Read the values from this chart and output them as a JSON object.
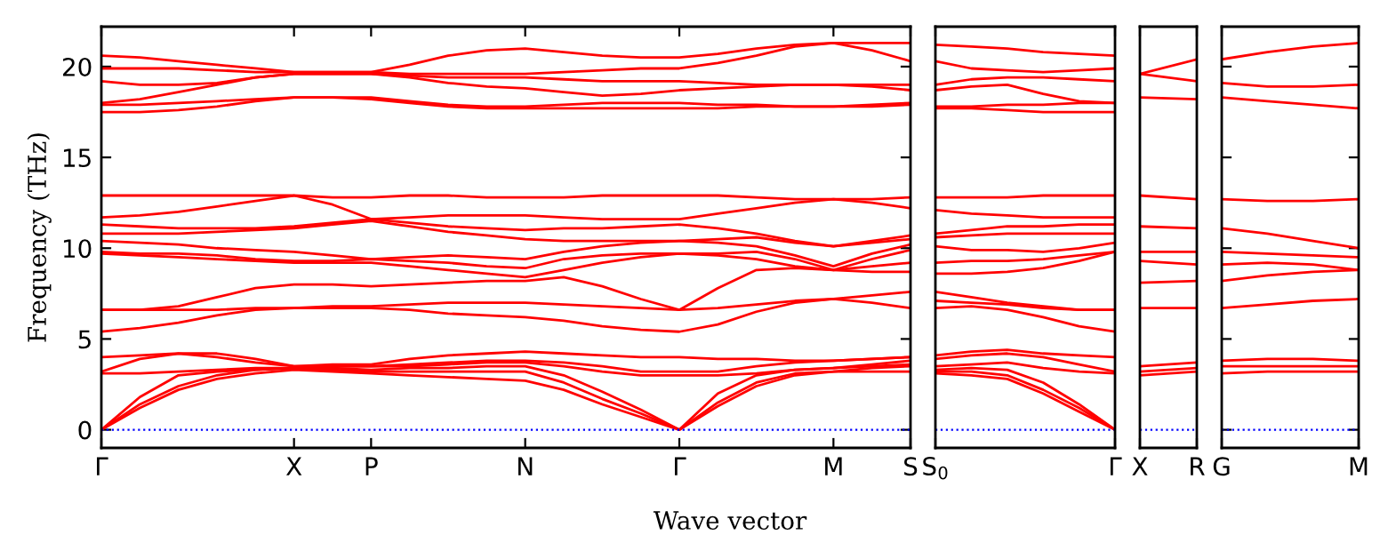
{
  "chart_data": [
    {
      "type": "line",
      "ylabel": "Frequency (THz)",
      "xlabel": "Wave vector",
      "ylim": [
        -1,
        22.2
      ],
      "yticks": [
        0,
        5,
        10,
        15,
        20
      ],
      "categories": [
        "Γ",
        null,
        null,
        null,
        null,
        "X",
        null,
        "P",
        null,
        null,
        null,
        "N",
        null,
        null,
        null,
        "Γ",
        null,
        null,
        null,
        "M",
        null,
        "S"
      ],
      "ref_lines": [
        {
          "axis": "y",
          "value": 0,
          "color": "#0000ff",
          "line_style": "dotted"
        }
      ],
      "series": [
        {
          "color": "#ff0000",
          "values": [
            0,
            1.2,
            2.2,
            2.8,
            3.1,
            3.3,
            3.2,
            3.1,
            3.0,
            2.9,
            2.8,
            2.7,
            2.2,
            1.4,
            0.7,
            0,
            1.3,
            2.4,
            3.0,
            3.2,
            3.2,
            3.2
          ]
        },
        {
          "color": "#ff0000",
          "values": [
            0,
            1.4,
            2.4,
            3.0,
            3.3,
            3.4,
            3.3,
            3.2,
            3.2,
            3.2,
            3.2,
            3.2,
            2.6,
            1.7,
            0.9,
            0,
            1.5,
            2.6,
            3.1,
            3.2,
            3.4,
            3.5
          ]
        },
        {
          "color": "#ff0000",
          "values": [
            0,
            1.8,
            3.0,
            3.2,
            3.3,
            3.4,
            3.4,
            3.3,
            3.4,
            3.4,
            3.5,
            3.5,
            3.0,
            2.1,
            1.1,
            0,
            2.0,
            3.0,
            3.3,
            3.4,
            3.5,
            3.6
          ]
        },
        {
          "color": "#ff0000",
          "values": [
            3.1,
            3.1,
            3.2,
            3.3,
            3.4,
            3.4,
            3.5,
            3.5,
            3.5,
            3.6,
            3.7,
            3.7,
            3.5,
            3.2,
            3.0,
            3.0,
            3.0,
            3.1,
            3.3,
            3.4,
            3.6,
            3.8
          ]
        },
        {
          "color": "#ff0000",
          "values": [
            3.2,
            3.9,
            4.2,
            4.0,
            3.7,
            3.5,
            3.5,
            3.5,
            3.6,
            3.7,
            3.8,
            3.8,
            3.7,
            3.5,
            3.2,
            3.2,
            3.2,
            3.5,
            3.7,
            3.8,
            3.9,
            4.0
          ]
        },
        {
          "color": "#ff0000",
          "values": [
            4.0,
            4.1,
            4.2,
            4.2,
            3.9,
            3.5,
            3.6,
            3.6,
            3.9,
            4.1,
            4.2,
            4.3,
            4.2,
            4.1,
            4.0,
            4.0,
            3.9,
            3.9,
            3.8,
            3.8,
            3.9,
            4.0
          ]
        },
        {
          "color": "#ff0000",
          "values": [
            5.4,
            5.6,
            5.9,
            6.3,
            6.6,
            6.7,
            6.7,
            6.7,
            6.6,
            6.4,
            6.3,
            6.2,
            6.0,
            5.7,
            5.5,
            5.4,
            5.8,
            6.5,
            7.0,
            7.2,
            7.0,
            6.7
          ]
        },
        {
          "color": "#ff0000",
          "values": [
            6.6,
            6.6,
            6.6,
            6.6,
            6.7,
            6.7,
            6.8,
            6.8,
            6.9,
            7.0,
            7.0,
            7.0,
            6.9,
            6.8,
            6.7,
            6.6,
            6.7,
            6.9,
            7.1,
            7.2,
            7.4,
            7.6
          ]
        },
        {
          "color": "#ff0000",
          "values": [
            6.6,
            6.6,
            6.8,
            7.3,
            7.8,
            8.0,
            8.0,
            7.9,
            8.0,
            8.1,
            8.2,
            8.2,
            8.4,
            7.9,
            7.2,
            6.6,
            7.8,
            8.8,
            8.9,
            8.8,
            8.7,
            8.7
          ]
        },
        {
          "color": "#ff0000",
          "values": [
            9.7,
            9.6,
            9.5,
            9.4,
            9.3,
            9.2,
            9.2,
            9.2,
            9.0,
            8.8,
            8.6,
            8.4,
            8.8,
            9.2,
            9.5,
            9.7,
            9.6,
            9.4,
            9.0,
            8.8,
            9.0,
            9.2
          ]
        },
        {
          "color": "#ff0000",
          "values": [
            9.8,
            9.7,
            9.7,
            9.6,
            9.4,
            9.3,
            9.3,
            9.4,
            9.3,
            9.2,
            9.0,
            8.9,
            9.4,
            9.6,
            9.7,
            9.7,
            9.7,
            9.8,
            9.4,
            8.8,
            9.4,
            9.9
          ]
        },
        {
          "color": "#ff0000",
          "values": [
            10.4,
            10.3,
            10.2,
            10.0,
            9.9,
            9.8,
            9.6,
            9.4,
            9.5,
            9.6,
            9.5,
            9.4,
            9.8,
            10.1,
            10.3,
            10.4,
            10.3,
            10.1,
            9.6,
            9.0,
            9.7,
            10.2
          ]
        },
        {
          "color": "#ff0000",
          "values": [
            10.8,
            10.8,
            10.8,
            10.9,
            11.0,
            11.1,
            11.3,
            11.5,
            11.2,
            10.9,
            10.7,
            10.5,
            10.4,
            10.4,
            10.4,
            10.4,
            10.5,
            10.6,
            10.3,
            10.1,
            10.3,
            10.5
          ]
        },
        {
          "color": "#ff0000",
          "values": [
            11.3,
            11.2,
            11.1,
            11.1,
            11.1,
            11.2,
            11.4,
            11.6,
            11.4,
            11.2,
            11.1,
            11.0,
            11.1,
            11.1,
            11.2,
            11.3,
            11.1,
            10.8,
            10.4,
            10.1,
            10.4,
            10.7
          ]
        },
        {
          "color": "#ff0000",
          "values": [
            11.7,
            11.8,
            12.0,
            12.3,
            12.6,
            12.9,
            12.4,
            11.6,
            11.7,
            11.8,
            11.8,
            11.8,
            11.7,
            11.6,
            11.6,
            11.6,
            11.9,
            12.2,
            12.5,
            12.7,
            12.5,
            12.2
          ]
        },
        {
          "color": "#ff0000",
          "values": [
            12.9,
            12.9,
            12.9,
            12.9,
            12.9,
            12.9,
            12.8,
            12.8,
            12.9,
            12.9,
            12.8,
            12.8,
            12.8,
            12.9,
            12.9,
            12.9,
            12.9,
            12.8,
            12.7,
            12.7,
            12.7,
            12.8
          ]
        },
        {
          "color": "#ff0000",
          "values": [
            17.5,
            17.5,
            17.6,
            17.8,
            18.1,
            18.3,
            18.3,
            18.2,
            18.0,
            17.8,
            17.7,
            17.7,
            17.7,
            17.7,
            17.7,
            17.7,
            17.7,
            17.8,
            17.8,
            17.8,
            17.8,
            17.9
          ]
        },
        {
          "color": "#ff0000",
          "values": [
            17.9,
            17.9,
            18.0,
            18.1,
            18.2,
            18.3,
            18.3,
            18.3,
            18.1,
            17.9,
            17.8,
            17.8,
            17.9,
            18.0,
            18.0,
            18.0,
            17.9,
            17.9,
            17.8,
            17.8,
            17.9,
            18.0
          ]
        },
        {
          "color": "#ff0000",
          "values": [
            18.0,
            18.2,
            18.6,
            19.0,
            19.4,
            19.6,
            19.6,
            19.6,
            19.4,
            19.1,
            18.9,
            18.8,
            18.6,
            18.4,
            18.5,
            18.7,
            18.8,
            18.9,
            19.0,
            19.0,
            18.9,
            18.7
          ]
        },
        {
          "color": "#ff0000",
          "values": [
            19.2,
            19.0,
            19.0,
            19.1,
            19.4,
            19.6,
            19.6,
            19.6,
            19.5,
            19.4,
            19.4,
            19.4,
            19.3,
            19.2,
            19.2,
            19.2,
            19.1,
            19.0,
            19.0,
            19.0,
            19.0,
            19.0
          ]
        },
        {
          "color": "#ff0000",
          "values": [
            19.9,
            19.9,
            19.9,
            19.8,
            19.7,
            19.7,
            19.7,
            19.7,
            19.6,
            19.6,
            19.6,
            19.6,
            19.7,
            19.8,
            19.9,
            19.9,
            20.2,
            20.6,
            21.1,
            21.3,
            20.9,
            20.3
          ]
        },
        {
          "color": "#ff0000",
          "values": [
            20.6,
            20.5,
            20.3,
            20.1,
            19.9,
            19.7,
            19.7,
            19.7,
            20.1,
            20.6,
            20.9,
            21.0,
            20.8,
            20.6,
            20.5,
            20.5,
            20.7,
            21.0,
            21.2,
            21.3,
            21.3,
            21.3
          ]
        }
      ]
    },
    {
      "type": "line",
      "ylim": [
        -1,
        22.2
      ],
      "tick_labels": "x",
      "categories": [
        "S$_{0}$",
        null,
        null,
        null,
        null,
        "Γ"
      ],
      "ref_lines": [
        {
          "axis": "y",
          "value": 0,
          "color": "#0000ff",
          "line_style": "dotted"
        }
      ],
      "series": [
        {
          "color": "#ff0000",
          "values": [
            3.1,
            3.0,
            2.8,
            2.0,
            1.0,
            0
          ]
        },
        {
          "color": "#ff0000",
          "values": [
            3.2,
            3.2,
            3.0,
            2.2,
            1.2,
            0
          ]
        },
        {
          "color": "#ff0000",
          "values": [
            3.3,
            3.4,
            3.3,
            2.6,
            1.4,
            0
          ]
        },
        {
          "color": "#ff0000",
          "values": [
            3.5,
            3.6,
            3.7,
            3.4,
            3.2,
            3.1
          ]
        },
        {
          "color": "#ff0000",
          "values": [
            3.9,
            4.1,
            4.2,
            4.0,
            3.6,
            3.2
          ]
        },
        {
          "color": "#ff0000",
          "values": [
            4.1,
            4.3,
            4.4,
            4.2,
            4.1,
            4.0
          ]
        },
        {
          "color": "#ff0000",
          "values": [
            6.7,
            6.8,
            6.6,
            6.2,
            5.7,
            5.4
          ]
        },
        {
          "color": "#ff0000",
          "values": [
            7.1,
            7.0,
            6.9,
            6.7,
            6.6,
            6.6
          ]
        },
        {
          "color": "#ff0000",
          "values": [
            7.6,
            7.3,
            7.0,
            6.8,
            6.6,
            6.6
          ]
        },
        {
          "color": "#ff0000",
          "values": [
            8.6,
            8.6,
            8.7,
            8.9,
            9.3,
            9.8
          ]
        },
        {
          "color": "#ff0000",
          "values": [
            9.2,
            9.3,
            9.3,
            9.4,
            9.6,
            9.8
          ]
        },
        {
          "color": "#ff0000",
          "values": [
            10.1,
            9.9,
            9.9,
            9.8,
            10.0,
            10.3
          ]
        },
        {
          "color": "#ff0000",
          "values": [
            10.6,
            10.7,
            10.8,
            10.8,
            10.8,
            10.8
          ]
        },
        {
          "color": "#ff0000",
          "values": [
            10.8,
            11.0,
            11.2,
            11.2,
            11.3,
            11.3
          ]
        },
        {
          "color": "#ff0000",
          "values": [
            12.1,
            11.9,
            11.8,
            11.7,
            11.7,
            11.7
          ]
        },
        {
          "color": "#ff0000",
          "values": [
            12.8,
            12.8,
            12.8,
            12.9,
            12.9,
            12.9
          ]
        },
        {
          "color": "#ff0000",
          "values": [
            17.7,
            17.7,
            17.6,
            17.5,
            17.5,
            17.5
          ]
        },
        {
          "color": "#ff0000",
          "values": [
            17.8,
            17.8,
            17.9,
            17.9,
            18.0,
            18.0
          ]
        },
        {
          "color": "#ff0000",
          "values": [
            18.7,
            18.9,
            19.0,
            18.5,
            18.1,
            18.0
          ]
        },
        {
          "color": "#ff0000",
          "values": [
            19.0,
            19.3,
            19.4,
            19.4,
            19.3,
            19.2
          ]
        },
        {
          "color": "#ff0000",
          "values": [
            20.3,
            19.9,
            19.8,
            19.7,
            19.8,
            19.9
          ]
        },
        {
          "color": "#ff0000",
          "values": [
            21.2,
            21.1,
            21.0,
            20.8,
            20.7,
            20.6
          ]
        }
      ]
    },
    {
      "type": "line",
      "ylim": [
        -1,
        22.2
      ],
      "tick_labels": "x",
      "categories": [
        "X",
        "R"
      ],
      "ref_lines": [
        {
          "axis": "y",
          "value": 0,
          "color": "#0000ff",
          "line_style": "dotted"
        }
      ],
      "series": [
        {
          "color": "#ff0000",
          "values": [
            3.0,
            3.2
          ]
        },
        {
          "color": "#ff0000",
          "values": [
            3.2,
            3.4
          ]
        },
        {
          "color": "#ff0000",
          "values": [
            3.5,
            3.7
          ]
        },
        {
          "color": "#ff0000",
          "values": [
            6.7,
            6.7
          ]
        },
        {
          "color": "#ff0000",
          "values": [
            8.1,
            8.2
          ]
        },
        {
          "color": "#ff0000",
          "values": [
            9.3,
            9.1
          ]
        },
        {
          "color": "#ff0000",
          "values": [
            9.8,
            9.8
          ]
        },
        {
          "color": "#ff0000",
          "values": [
            11.2,
            11.1
          ]
        },
        {
          "color": "#ff0000",
          "values": [
            12.9,
            12.7
          ]
        },
        {
          "color": "#ff0000",
          "values": [
            18.3,
            18.2
          ]
        },
        {
          "color": "#ff0000",
          "values": [
            19.6,
            19.2
          ]
        },
        {
          "color": "#ff0000",
          "values": [
            19.6,
            20.4
          ]
        }
      ]
    },
    {
      "type": "line",
      "ylim": [
        -1,
        22.2
      ],
      "yticks": [
        0,
        5,
        10,
        15,
        20
      ],
      "tick_labels": "x",
      "categories": [
        "G",
        null,
        null,
        "M"
      ],
      "ref_lines": [
        {
          "axis": "y",
          "value": 0,
          "color": "#0000ff",
          "line_style": "dotted"
        }
      ],
      "series": [
        {
          "color": "#ff0000",
          "values": [
            3.1,
            3.2,
            3.2,
            3.2
          ]
        },
        {
          "color": "#ff0000",
          "values": [
            3.5,
            3.5,
            3.5,
            3.5
          ]
        },
        {
          "color": "#ff0000",
          "values": [
            3.8,
            3.9,
            3.9,
            3.8
          ]
        },
        {
          "color": "#ff0000",
          "values": [
            6.7,
            6.9,
            7.1,
            7.2
          ]
        },
        {
          "color": "#ff0000",
          "values": [
            8.2,
            8.5,
            8.7,
            8.8
          ]
        },
        {
          "color": "#ff0000",
          "values": [
            9.1,
            9.2,
            9.1,
            8.8
          ]
        },
        {
          "color": "#ff0000",
          "values": [
            9.8,
            9.7,
            9.6,
            9.5
          ]
        },
        {
          "color": "#ff0000",
          "values": [
            11.1,
            10.8,
            10.4,
            10.0
          ]
        },
        {
          "color": "#ff0000",
          "values": [
            12.7,
            12.6,
            12.6,
            12.7
          ]
        },
        {
          "color": "#ff0000",
          "values": [
            18.3,
            18.1,
            17.9,
            17.7
          ]
        },
        {
          "color": "#ff0000",
          "values": [
            19.1,
            18.9,
            18.9,
            19.0
          ]
        },
        {
          "color": "#ff0000",
          "values": [
            20.4,
            20.8,
            21.1,
            21.3
          ]
        }
      ]
    }
  ]
}
